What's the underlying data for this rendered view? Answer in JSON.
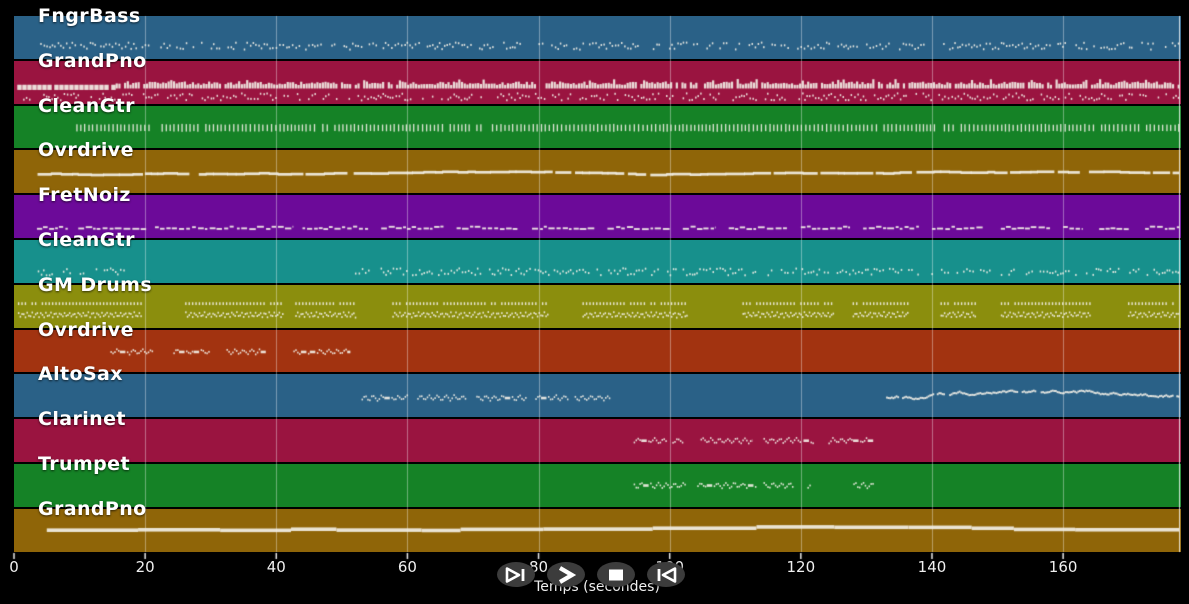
{
  "ui": {
    "background": "#000000",
    "text_color": "#ffffff",
    "button_bg": "#3c3c3c",
    "icon_color": "#ffffff",
    "note_color": "#f2efe6",
    "grid_color": "#ffffff"
  },
  "axis": {
    "label": "Temps (secondes)",
    "ticks": [
      "0",
      "20",
      "40",
      "60",
      "80",
      "100",
      "120",
      "140",
      "160"
    ],
    "tick_values": [
      0,
      20,
      40,
      60,
      80,
      100,
      120,
      140,
      160
    ]
  },
  "transport": {
    "buttons": [
      {
        "name": "play",
        "icon": "play-skip-forward"
      },
      {
        "name": "fast-forward",
        "icon": "fast-forward"
      },
      {
        "name": "stop",
        "icon": "stop"
      },
      {
        "name": "rewind",
        "icon": "rewind"
      }
    ]
  },
  "chart_data": {
    "type": "timeline",
    "title": "",
    "xlabel": "Temps (secondes)",
    "x_ticks": [
      0,
      20,
      40,
      60,
      80,
      100,
      120,
      140,
      160
    ],
    "x_range": [
      0,
      178
    ],
    "grid": true,
    "tracks": [
      {
        "name": "FngrBass",
        "color": "#2a6187",
        "patterns": [
          {
            "type": "specks",
            "row": 0.68,
            "segments": [
              [
                4,
                178
              ]
            ]
          }
        ]
      },
      {
        "name": "GrandPno",
        "color": "#9a1440",
        "patterns": [
          {
            "type": "bigblocks",
            "row": 0.62,
            "segments": [
              [
                0.5,
                15.5
              ]
            ]
          },
          {
            "type": "blocks",
            "row": 0.6,
            "segments": [
              [
                15.5,
                178
              ]
            ]
          },
          {
            "type": "specks",
            "row": 0.82,
            "segments": [
              [
                1,
                178
              ]
            ]
          }
        ]
      },
      {
        "name": "CleanGtr",
        "color": "#158226",
        "patterns": [
          {
            "type": "vticks",
            "row": 0.52,
            "segments": [
              [
                9.5,
                20.8
              ],
              [
                22.5,
                46
              ],
              [
                47,
                69.5
              ],
              [
                70.5,
                140.3
              ],
              [
                141.8,
                178
              ]
            ]
          }
        ]
      },
      {
        "name": "Ovrdrive",
        "color": "#8f6508",
        "patterns": [
          {
            "type": "hdash",
            "row": 0.55,
            "segments": [
              [
                3,
                178
              ]
            ]
          }
        ]
      },
      {
        "name": "FretNoiz",
        "color": "#6c0a99",
        "patterns": [
          {
            "type": "hdash2",
            "row": 0.78,
            "segments": [
              [
                3.5,
                8.2
              ],
              [
                9.8,
                20.2
              ],
              [
                21.5,
                33.5
              ],
              [
                34,
                42.6
              ],
              [
                44,
                54
              ],
              [
                56,
                65.5
              ],
              [
                67.5,
                77
              ],
              [
                79,
                88.5
              ],
              [
                90.5,
                100
              ],
              [
                102,
                107
              ],
              [
                109,
                118
              ],
              [
                120,
                127.5
              ],
              [
                129.5,
                138
              ],
              [
                140,
                148
              ],
              [
                150.5,
                158
              ],
              [
                160,
                163
              ],
              [
                165.5,
                170
              ],
              [
                172.5,
                178
              ]
            ]
          }
        ]
      },
      {
        "name": "CleanGtr",
        "color": "#17908c",
        "patterns": [
          {
            "type": "specks",
            "row": 0.72,
            "segments": [
              [
                3.2,
                17.2
              ],
              [
                52,
                178
              ]
            ]
          }
        ]
      },
      {
        "name": "GM Drums",
        "color": "#8b8e0d",
        "patterns": [
          {
            "type": "dotline",
            "row": 0.44,
            "segments": [
              [
                0.6,
                19.5
              ],
              [
                26.1,
                41.1
              ],
              [
                42.9,
                52
              ],
              [
                57.7,
                81.3
              ],
              [
                86.7,
                102.7
              ],
              [
                111.1,
                125
              ],
              [
                127.9,
                136.3
              ],
              [
                141.3,
                146.7
              ],
              [
                150.5,
                164.2
              ],
              [
                169.9,
                178
              ]
            ]
          },
          {
            "type": "zigzag",
            "row": 0.7,
            "segments": [
              [
                0.6,
                19.5
              ],
              [
                26.1,
                41.1
              ],
              [
                42.9,
                52
              ],
              [
                57.7,
                81.3
              ],
              [
                86.7,
                102.7
              ],
              [
                111.1,
                125
              ],
              [
                127.9,
                136.3
              ],
              [
                141.3,
                146.7
              ],
              [
                150.5,
                164.2
              ],
              [
                169.9,
                178
              ]
            ]
          }
        ]
      },
      {
        "name": "Ovrdrive",
        "color": "#a23310",
        "patterns": [
          {
            "type": "wavy",
            "row": 0.52,
            "segments": [
              [
                14.7,
                21.2
              ],
              [
                24.3,
                29.8
              ],
              [
                32.4,
                38.4
              ],
              [
                42.6,
                51.3
              ]
            ]
          }
        ]
      },
      {
        "name": "AltoSax",
        "color": "#2a6187",
        "patterns": [
          {
            "type": "wavy",
            "row": 0.55,
            "segments": [
              [
                53,
                60
              ],
              [
                61.5,
                69
              ],
              [
                70.5,
                78
              ],
              [
                79.5,
                84.5
              ],
              [
                85.5,
                91
              ]
            ]
          },
          {
            "type": "wavyline",
            "row": 0.52,
            "segments": [
              [
                133,
                178
              ]
            ]
          }
        ]
      },
      {
        "name": "Clarinet",
        "color": "#9a1440",
        "patterns": [
          {
            "type": "wavy",
            "row": 0.5,
            "segments": [
              [
                94.5,
                99.6
              ],
              [
                100.4,
                102.1
              ],
              [
                104.7,
                112.6
              ],
              [
                114.3,
                120
              ],
              [
                120.4,
                121.9
              ],
              [
                124.2,
                131.1
              ]
            ]
          }
        ]
      },
      {
        "name": "Trumpet",
        "color": "#158226",
        "patterns": [
          {
            "type": "wavy",
            "row": 0.5,
            "segments": [
              [
                94.5,
                102.4
              ],
              [
                104.2,
                113.1
              ],
              [
                114.3,
                118.9
              ],
              [
                121,
                121.5
              ],
              [
                128,
                131.1
              ]
            ]
          }
        ]
      },
      {
        "name": "GrandPno",
        "color": "#8f6508",
        "patterns": [
          {
            "type": "solid",
            "row": 0.5,
            "segments": [
              [
                5,
                178
              ]
            ]
          }
        ]
      }
    ]
  }
}
